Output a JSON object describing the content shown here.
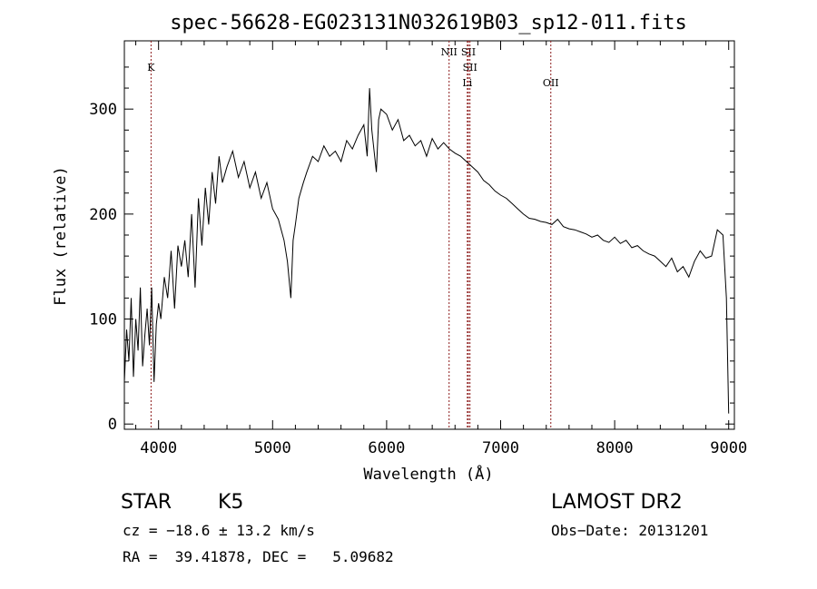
{
  "chart_data": {
    "type": "line",
    "title": "spec-56628-EG023131N032619B03_sp12-011.fits",
    "xlabel": "Wavelength (Å)",
    "ylabel": "Flux (relative)",
    "xlim": [
      3700,
      9050
    ],
    "ylim": [
      -5,
      365
    ],
    "x_ticks": [
      4000,
      5000,
      6000,
      7000,
      8000,
      9000
    ],
    "y_ticks": [
      0,
      100,
      200,
      300
    ],
    "grid": false,
    "series": [
      {
        "x": [
          3700,
          3720,
          3740,
          3760,
          3780,
          3800,
          3820,
          3840,
          3860,
          3880,
          3900,
          3920,
          3940,
          3960,
          3980,
          4000,
          4020,
          4050,
          4080,
          4110,
          4140,
          4170,
          4200,
          4230,
          4260,
          4290,
          4320,
          4350,
          4380,
          4410,
          4440,
          4470,
          4500,
          4530,
          4560,
          4600,
          4650,
          4700,
          4750,
          4800,
          4850,
          4900,
          4950,
          5000,
          5050,
          5100,
          5130,
          5160,
          5180,
          5200,
          5230,
          5270,
          5300,
          5350,
          5400,
          5450,
          5500,
          5550,
          5600,
          5650,
          5700,
          5750,
          5800,
          5830,
          5850,
          5870,
          5890,
          5910,
          5930,
          5950,
          6000,
          6050,
          6100,
          6150,
          6200,
          6250,
          6300,
          6350,
          6400,
          6450,
          6500,
          6550,
          6600,
          6650,
          6700,
          6750,
          6800,
          6850,
          6900,
          6950,
          7000,
          7050,
          7100,
          7150,
          7200,
          7250,
          7300,
          7350,
          7400,
          7450,
          7500,
          7550,
          7600,
          7650,
          7700,
          7750,
          7800,
          7850,
          7900,
          7950,
          8000,
          8050,
          8100,
          8150,
          8200,
          8250,
          8300,
          8350,
          8400,
          8450,
          8500,
          8550,
          8600,
          8650,
          8700,
          8750,
          8800,
          8850,
          8900,
          8950,
          8980,
          9000
        ],
        "values": [
          40,
          90,
          60,
          120,
          45,
          100,
          70,
          130,
          55,
          85,
          110,
          75,
          130,
          40,
          95,
          115,
          100,
          140,
          120,
          165,
          110,
          170,
          150,
          175,
          140,
          200,
          130,
          215,
          170,
          225,
          190,
          240,
          210,
          255,
          230,
          245,
          260,
          235,
          250,
          225,
          240,
          215,
          230,
          205,
          195,
          175,
          155,
          120,
          175,
          190,
          215,
          230,
          240,
          255,
          250,
          265,
          255,
          260,
          250,
          270,
          262,
          275,
          285,
          255,
          320,
          280,
          260,
          240,
          290,
          300,
          295,
          280,
          290,
          270,
          275,
          265,
          270,
          255,
          272,
          262,
          268,
          262,
          258,
          255,
          250,
          245,
          240,
          232,
          228,
          222,
          218,
          215,
          210,
          205,
          200,
          196,
          195,
          193,
          192,
          190,
          195,
          188,
          186,
          185,
          183,
          181,
          178,
          180,
          175,
          173,
          178,
          172,
          175,
          168,
          170,
          165,
          162,
          160,
          155,
          150,
          158,
          145,
          150,
          140,
          155,
          165,
          158,
          160,
          185,
          180,
          120,
          10
        ]
      }
    ],
    "line_markers": [
      {
        "wavelength": 3934,
        "label": "K"
      },
      {
        "wavelength": 6548,
        "label": "NII"
      },
      {
        "wavelength": 6717,
        "label": "SII"
      },
      {
        "wavelength": 6731,
        "label": "SII"
      },
      {
        "wavelength": 6708,
        "label": "Li"
      },
      {
        "wavelength": 7440,
        "label": "OII"
      }
    ],
    "colors": {
      "spectrum": "#000000",
      "marker": "#8b1a1a"
    }
  },
  "info": {
    "object_class": "STAR",
    "subclass": "K5",
    "survey": "LAMOST DR2",
    "cz_line": "cz = −18.6 ± 13.2 km/s",
    "obs_date_line": "Obs−Date: 20131201",
    "radec_line": "RA =  39.41878, DEC =   5.09682"
  }
}
